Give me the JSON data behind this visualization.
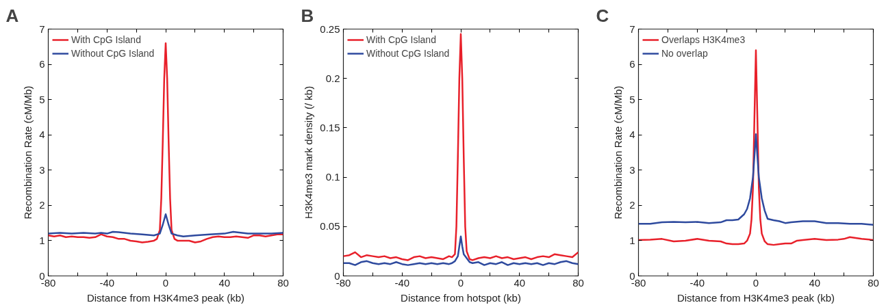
{
  "chart_data": [
    {
      "type": "line",
      "title": "A",
      "xlabel": "Distance from H3K4me3 peak (kb)",
      "ylabel": "Recombination Rate (cM/Mb)",
      "xlim": [
        -80,
        80
      ],
      "ylim": [
        0,
        7
      ],
      "xticks": [
        -80,
        {
          "value": -60,
          "label": null
        },
        -40,
        {
          "value": -20,
          "label": null
        },
        0,
        {
          "value": 20,
          "label": null
        },
        40,
        {
          "value": 60,
          "label": null
        },
        80
      ],
      "yticks": [
        0,
        1,
        2,
        3,
        4,
        5,
        6,
        7
      ],
      "grid": false,
      "legend": "top left",
      "series": [
        {
          "name": "With CpG Island",
          "color": "#e8202a",
          "x": [
            -80,
            -76,
            -72,
            -68,
            -64,
            -60,
            -56,
            -52,
            -48,
            -44,
            -40,
            -36,
            -32,
            -28,
            -24,
            -20,
            -16,
            -12,
            -8,
            -6,
            -4,
            -3,
            -2,
            -1,
            0,
            1,
            2,
            3,
            4,
            6,
            8,
            12,
            16,
            20,
            24,
            28,
            32,
            36,
            40,
            44,
            48,
            52,
            56,
            60,
            64,
            68,
            72,
            76,
            80
          ],
          "values": [
            1.15,
            1.12,
            1.15,
            1.1,
            1.12,
            1.1,
            1.1,
            1.08,
            1.1,
            1.18,
            1.12,
            1.1,
            1.05,
            1.05,
            1.0,
            0.98,
            0.95,
            0.97,
            1.0,
            1.05,
            1.3,
            2.2,
            3.8,
            5.6,
            6.6,
            5.6,
            3.8,
            2.2,
            1.3,
            1.05,
            1.0,
            1.0,
            1.0,
            0.95,
            0.98,
            1.05,
            1.1,
            1.12,
            1.1,
            1.1,
            1.12,
            1.1,
            1.08,
            1.15,
            1.15,
            1.12,
            1.15,
            1.18,
            1.18
          ]
        },
        {
          "name": "Without CpG Island",
          "color": "#2e4a9e",
          "x": [
            -80,
            -72,
            -64,
            -56,
            -48,
            -44,
            -40,
            -36,
            -32,
            -24,
            -16,
            -8,
            -4,
            -2,
            0,
            2,
            4,
            8,
            12,
            20,
            30,
            40,
            46,
            52,
            56,
            64,
            72,
            80
          ],
          "values": [
            1.2,
            1.22,
            1.2,
            1.22,
            1.2,
            1.22,
            1.2,
            1.25,
            1.24,
            1.2,
            1.18,
            1.15,
            1.2,
            1.45,
            1.75,
            1.45,
            1.2,
            1.15,
            1.12,
            1.15,
            1.18,
            1.2,
            1.25,
            1.22,
            1.2,
            1.2,
            1.2,
            1.22
          ]
        }
      ]
    },
    {
      "type": "line",
      "title": "B",
      "xlabel": "Distance from hotspot (kb)",
      "ylabel": "H3K4me3 mark density (/ kb)",
      "xlim": [
        -80,
        80
      ],
      "ylim": [
        0,
        0.25
      ],
      "xticks": [
        -80,
        {
          "value": -60,
          "label": null
        },
        -40,
        {
          "value": -20,
          "label": null
        },
        0,
        {
          "value": 20,
          "label": null
        },
        40,
        {
          "value": 60,
          "label": null
        },
        80
      ],
      "yticks": [
        0,
        0.05,
        0.1,
        0.15,
        0.2,
        0.25
      ],
      "grid": false,
      "legend": "top left",
      "series": [
        {
          "name": "With CpG Island",
          "color": "#e8202a",
          "x": [
            -80,
            -76,
            -72,
            -68,
            -64,
            -60,
            -56,
            -52,
            -48,
            -44,
            -40,
            -36,
            -32,
            -28,
            -24,
            -20,
            -16,
            -12,
            -8,
            -6,
            -4,
            -3,
            -2,
            -1,
            0,
            1,
            2,
            3,
            4,
            6,
            8,
            12,
            16,
            20,
            24,
            28,
            32,
            36,
            40,
            44,
            48,
            52,
            56,
            60,
            64,
            68,
            72,
            76,
            80
          ],
          "values": [
            0.02,
            0.021,
            0.024,
            0.019,
            0.021,
            0.02,
            0.019,
            0.02,
            0.018,
            0.019,
            0.017,
            0.016,
            0.019,
            0.02,
            0.018,
            0.019,
            0.018,
            0.017,
            0.02,
            0.019,
            0.022,
            0.05,
            0.12,
            0.2,
            0.245,
            0.2,
            0.12,
            0.05,
            0.025,
            0.017,
            0.016,
            0.018,
            0.019,
            0.018,
            0.02,
            0.018,
            0.019,
            0.017,
            0.018,
            0.019,
            0.017,
            0.019,
            0.02,
            0.019,
            0.022,
            0.021,
            0.02,
            0.019,
            0.024
          ]
        },
        {
          "name": "Without CpG Island",
          "color": "#2e4a9e",
          "x": [
            -80,
            -76,
            -72,
            -68,
            -64,
            -60,
            -56,
            -52,
            -48,
            -44,
            -40,
            -36,
            -32,
            -28,
            -24,
            -20,
            -16,
            -12,
            -8,
            -6,
            -4,
            -2,
            -1,
            0,
            1,
            2,
            4,
            6,
            8,
            12,
            16,
            20,
            24,
            28,
            32,
            36,
            40,
            44,
            48,
            52,
            56,
            60,
            64,
            68,
            72,
            76,
            80
          ],
          "values": [
            0.013,
            0.013,
            0.011,
            0.014,
            0.015,
            0.013,
            0.012,
            0.013,
            0.012,
            0.014,
            0.012,
            0.011,
            0.012,
            0.013,
            0.012,
            0.013,
            0.012,
            0.013,
            0.012,
            0.013,
            0.015,
            0.02,
            0.03,
            0.04,
            0.03,
            0.022,
            0.018,
            0.014,
            0.013,
            0.014,
            0.011,
            0.013,
            0.012,
            0.014,
            0.011,
            0.013,
            0.012,
            0.013,
            0.012,
            0.013,
            0.011,
            0.013,
            0.012,
            0.014,
            0.015,
            0.013,
            0.012
          ]
        }
      ]
    },
    {
      "type": "line",
      "title": "C",
      "xlabel": "Distance from H3K4me3 peak (kb)",
      "ylabel": "Recombination Rate (cM/Mb)",
      "xlim": [
        -80,
        80
      ],
      "ylim": [
        0,
        7
      ],
      "xticks": [
        -80,
        {
          "value": -60,
          "label": null
        },
        -40,
        {
          "value": -20,
          "label": null
        },
        0,
        {
          "value": 20,
          "label": null
        },
        40,
        {
          "value": 60,
          "label": null
        },
        80
      ],
      "yticks": [
        0,
        1,
        2,
        3,
        4,
        5,
        6,
        7
      ],
      "grid": false,
      "legend": "top left",
      "series": [
        {
          "name": "Overlaps H3K4me3",
          "color": "#e8202a",
          "x": [
            -80,
            -72,
            -64,
            -56,
            -48,
            -40,
            -32,
            -24,
            -20,
            -16,
            -12,
            -8,
            -6,
            -4,
            -3,
            -2,
            -1,
            0,
            1,
            2,
            3,
            4,
            6,
            8,
            12,
            16,
            20,
            24,
            28,
            32,
            40,
            48,
            56,
            60,
            64,
            72,
            80
          ],
          "values": [
            1.02,
            1.03,
            1.05,
            0.98,
            1.0,
            1.05,
            1.0,
            0.98,
            0.92,
            0.9,
            0.9,
            0.92,
            1.0,
            1.2,
            1.6,
            2.5,
            4.5,
            6.4,
            4.5,
            2.5,
            1.6,
            1.2,
            0.98,
            0.9,
            0.88,
            0.9,
            0.92,
            0.92,
            1.0,
            1.02,
            1.05,
            1.02,
            1.03,
            1.05,
            1.1,
            1.05,
            1.02
          ]
        },
        {
          "name": "No overlap",
          "color": "#2e4a9e",
          "x": [
            -80,
            -72,
            -64,
            -56,
            -48,
            -40,
            -32,
            -24,
            -20,
            -16,
            -12,
            -8,
            -6,
            -4,
            -2,
            -1,
            0,
            1,
            2,
            4,
            6,
            8,
            12,
            16,
            20,
            24,
            32,
            40,
            48,
            56,
            64,
            72,
            80
          ],
          "values": [
            1.48,
            1.48,
            1.52,
            1.53,
            1.52,
            1.53,
            1.5,
            1.52,
            1.58,
            1.58,
            1.6,
            1.75,
            1.9,
            2.2,
            2.8,
            3.4,
            4.02,
            3.4,
            2.8,
            2.2,
            1.85,
            1.62,
            1.58,
            1.55,
            1.5,
            1.52,
            1.55,
            1.55,
            1.5,
            1.5,
            1.48,
            1.48,
            1.45
          ]
        }
      ]
    }
  ]
}
